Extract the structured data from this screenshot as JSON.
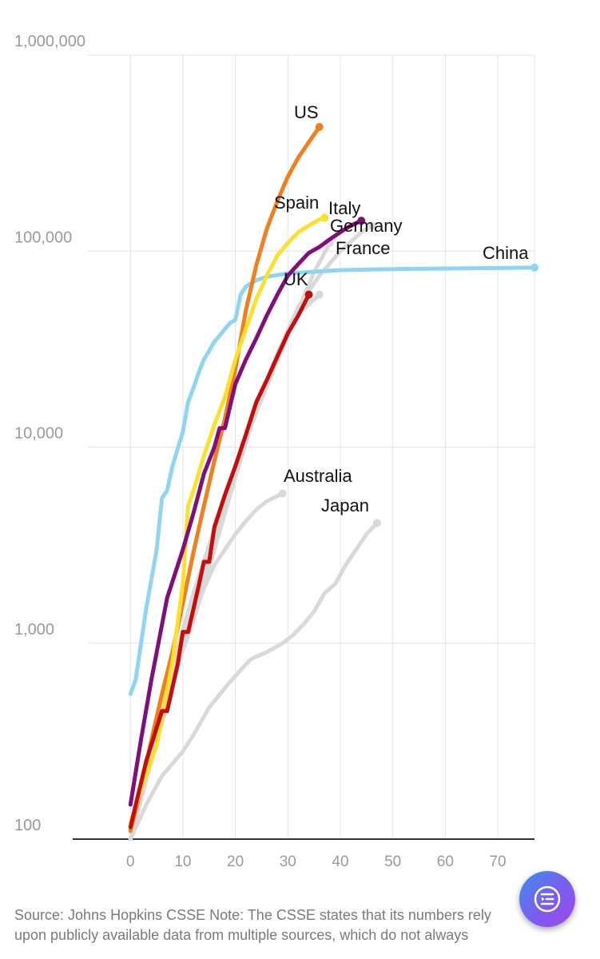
{
  "chart_data": {
    "type": "line",
    "title": "",
    "xlabel": "",
    "ylabel": "",
    "y_scale": "log",
    "ylim": [
      100,
      1000000
    ],
    "xlim": [
      -11,
      77
    ],
    "x_ticks": [
      0,
      10,
      20,
      30,
      40,
      50,
      60,
      70
    ],
    "y_ticks": [
      100,
      1000,
      10000,
      100000,
      1000000
    ],
    "y_tick_labels": [
      "100",
      "1,000",
      "10,000",
      "100,000",
      "1,000,000"
    ],
    "grid": "vertical and horizontal",
    "legend": "direct labels at line ends",
    "series": [
      {
        "name": "Japan",
        "color": "#d9d9d9",
        "x": [
          0,
          3,
          6,
          10,
          12,
          15,
          18,
          21,
          23,
          26,
          29,
          31,
          33,
          35,
          37,
          39,
          41,
          43,
          45,
          47
        ],
        "y": [
          100,
          150,
          210,
          280,
          340,
          470,
          590,
          730,
          830,
          900,
          1000,
          1100,
          1250,
          1450,
          1800,
          2000,
          2500,
          3000,
          3600,
          4100
        ]
      },
      {
        "name": "Australia",
        "color": "#d9d9d9",
        "x": [
          0,
          2,
          4,
          6,
          8,
          10,
          12,
          14,
          16,
          18,
          20,
          22,
          24,
          26,
          29
        ],
        "y": [
          100,
          160,
          260,
          390,
          600,
          950,
          1350,
          1900,
          2500,
          3000,
          3600,
          4200,
          4800,
          5300,
          5800
        ]
      },
      {
        "name": "Germany",
        "color": "#d9d9d9",
        "x": [
          0,
          4,
          8,
          12,
          16,
          20,
          24,
          28,
          32,
          36,
          40,
          44,
          46
        ],
        "y": [
          120,
          300,
          650,
          1300,
          3000,
          7000,
          16000,
          30000,
          52000,
          75000,
          100000,
          125000,
          135000
        ]
      },
      {
        "name": "France",
        "color": "#d9d9d9",
        "x": [
          0,
          4,
          8,
          12,
          16,
          20,
          24,
          28,
          32,
          35,
          38
        ],
        "y": [
          100,
          250,
          650,
          1500,
          3500,
          8000,
          15000,
          28000,
          50000,
          78000,
          110000
        ]
      },
      {
        "name": "",
        "color": "#d9d9d9",
        "x": [
          0,
          4,
          8,
          12,
          16,
          20,
          24,
          28,
          32,
          36
        ],
        "y": [
          110,
          280,
          750,
          1800,
          3800,
          8000,
          16000,
          30000,
          48000,
          60000
        ]
      },
      {
        "name": "China",
        "color": "#8fd5f2",
        "x": [
          0,
          1,
          3,
          5,
          6,
          7,
          8,
          10,
          11,
          12,
          13,
          14,
          15,
          16,
          17,
          18,
          19,
          20,
          21,
          22,
          24,
          26,
          30,
          40,
          50,
          60,
          70,
          77
        ],
        "y": [
          550,
          650,
          1500,
          3000,
          5500,
          6000,
          8000,
          12000,
          17000,
          20000,
          24000,
          28000,
          31000,
          34500,
          37000,
          40000,
          43000,
          44600,
          60000,
          66000,
          71000,
          74000,
          77000,
          80000,
          81000,
          81500,
          82000,
          82500
        ]
      },
      {
        "name": "US",
        "color": "#f07f1e",
        "x": [
          0,
          2,
          4,
          6,
          8,
          10,
          12,
          14,
          16,
          18,
          20,
          22,
          24,
          26,
          28,
          30,
          32,
          34,
          36
        ],
        "y": [
          110,
          180,
          320,
          550,
          900,
          1600,
          2900,
          5000,
          8500,
          14000,
          25000,
          50000,
          85000,
          130000,
          180000,
          240000,
          300000,
          360000,
          430000
        ]
      },
      {
        "name": "Spain",
        "color": "#fbe030",
        "x": [
          0,
          2,
          5,
          8,
          10,
          11,
          12,
          14,
          16,
          18,
          20,
          22,
          24,
          26,
          28,
          30,
          32,
          34,
          36,
          37
        ],
        "y": [
          120,
          180,
          300,
          800,
          2000,
          5000,
          6000,
          9000,
          13000,
          18000,
          28000,
          40000,
          57000,
          75000,
          95000,
          110000,
          125000,
          135000,
          145000,
          148000
        ]
      },
      {
        "name": "Italy",
        "color": "#800f7a",
        "x": [
          0,
          2,
          4,
          7,
          10,
          12,
          14,
          16,
          17,
          18,
          20,
          22,
          24,
          26,
          28,
          30,
          32,
          34,
          36,
          38,
          40,
          42,
          44
        ],
        "y": [
          150,
          320,
          650,
          1700,
          3000,
          4600,
          7300,
          10000,
          12500,
          12500,
          21000,
          28000,
          36000,
          47000,
          60000,
          75000,
          86000,
          98000,
          105000,
          115000,
          125000,
          135000,
          143000
        ]
      },
      {
        "name": "UK",
        "color": "#c40d0d",
        "x": [
          0,
          3,
          6,
          7,
          9,
          10,
          11,
          13,
          14,
          15,
          16,
          18,
          20,
          22,
          24,
          26,
          28,
          30,
          32,
          34
        ],
        "y": [
          115,
          250,
          450,
          450,
          780,
          1140,
          1140,
          1950,
          2600,
          2600,
          3900,
          5700,
          8000,
          11600,
          17000,
          22000,
          29000,
          38000,
          47000,
          60000
        ]
      }
    ],
    "end_labels": [
      "US",
      "Spain",
      "Italy",
      "Germany",
      "France",
      "China",
      "UK",
      "Australia",
      "Japan"
    ]
  },
  "footer": {
    "source_line1": "Source: Johns Hopkins CSSE Note: The CSSE states that its numbers rely",
    "source_line2": "upon publicly available data from multiple sources, which do not always"
  },
  "fab_icon": "reader-mode-icon"
}
